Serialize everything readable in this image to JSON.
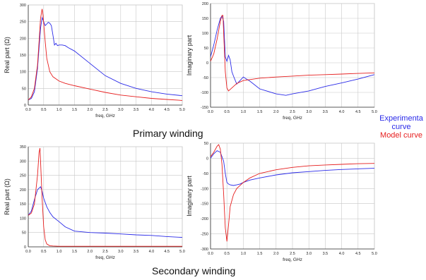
{
  "colors": {
    "experimental": "#2a2ae8",
    "model": "#e61e1e",
    "grid": "#c8c8c8",
    "axis": "#333333"
  },
  "captions": {
    "primary": "Primary winding",
    "secondary": "Secondary winding"
  },
  "legend": {
    "experimental_line1": "Experimenta",
    "experimental_line2": "curve",
    "model": "Model curve"
  },
  "chart_data": [
    {
      "id": "primary-real",
      "type": "line",
      "xlabel": "freq, GHz",
      "ylabel": "Real part (Ω)",
      "xlim": [
        0,
        5
      ],
      "ylim": [
        0,
        300
      ],
      "xticks": [
        0,
        0.5,
        1,
        1.5,
        2,
        2.5,
        3,
        3.5,
        4,
        4.5,
        5
      ],
      "xtick_labels": [
        "0.0",
        "0.5",
        "1.0",
        "1.5",
        "2.0",
        "2.5",
        "3.0",
        "3.5",
        "4.0",
        "4.5",
        "5.0"
      ],
      "yticks": [
        0,
        50,
        100,
        150,
        200,
        250,
        300
      ],
      "ytick_labels": [
        "0",
        "50",
        "100",
        "150",
        "200",
        "250",
        "300"
      ],
      "grid": true,
      "series": [
        {
          "color_key": "experimental",
          "x": [
            0,
            0.1,
            0.2,
            0.3,
            0.4,
            0.45,
            0.5,
            0.55,
            0.6,
            0.65,
            0.7,
            0.75,
            0.8,
            0.85,
            0.9,
            0.95,
            1.0,
            1.1,
            1.2,
            1.3,
            1.5,
            2.0,
            2.5,
            3.0,
            3.5,
            4.0,
            4.5,
            5.0
          ],
          "y": [
            15,
            20,
            40,
            110,
            230,
            262,
            250,
            238,
            243,
            248,
            245,
            238,
            210,
            180,
            185,
            178,
            180,
            180,
            178,
            172,
            162,
            125,
            88,
            65,
            50,
            40,
            33,
            28
          ]
        },
        {
          "color_key": "model",
          "x": [
            0,
            0.1,
            0.2,
            0.3,
            0.35,
            0.4,
            0.45,
            0.48,
            0.5,
            0.55,
            0.6,
            0.7,
            0.8,
            1.0,
            1.2,
            1.5,
            2.0,
            2.5,
            3.0,
            3.5,
            4.0,
            4.5,
            5.0
          ],
          "y": [
            15,
            25,
            50,
            120,
            190,
            260,
            288,
            270,
            245,
            190,
            140,
            100,
            85,
            72,
            65,
            58,
            48,
            38,
            30,
            25,
            20,
            17,
            14
          ]
        }
      ]
    },
    {
      "id": "primary-imag",
      "type": "line",
      "xlabel": "freq, GHz",
      "ylabel": "Imaginary part",
      "xlim": [
        0,
        5
      ],
      "ylim": [
        -150,
        200
      ],
      "xticks": [
        0,
        0.5,
        1,
        1.5,
        2,
        2.5,
        3,
        3.5,
        4,
        4.5,
        5
      ],
      "xtick_labels": [
        "0.0",
        "0.5",
        "1.0",
        "1.5",
        "2.0",
        "2.5",
        "3.0",
        "3.5",
        "4.0",
        "4.5",
        "5.0"
      ],
      "yticks": [
        -150,
        -100,
        -50,
        0,
        50,
        100,
        150,
        200
      ],
      "ytick_labels": [
        "-150",
        "-100",
        "-50",
        "0",
        "50",
        "100",
        "150",
        "200"
      ],
      "grid": true,
      "series": [
        {
          "color_key": "experimental",
          "x": [
            0,
            0.1,
            0.2,
            0.3,
            0.35,
            0.4,
            0.45,
            0.5,
            0.55,
            0.6,
            0.65,
            0.7,
            0.8,
            0.9,
            1.0,
            1.1,
            1.2,
            1.5,
            2.0,
            2.3,
            2.5,
            3.0,
            3.5,
            4.0,
            4.5,
            5.0
          ],
          "y": [
            20,
            60,
            110,
            150,
            158,
            140,
            20,
            5,
            25,
            10,
            -30,
            -45,
            -72,
            -60,
            -48,
            -55,
            -62,
            -88,
            -105,
            -110,
            -105,
            -95,
            -80,
            -68,
            -55,
            -40
          ]
        },
        {
          "color_key": "model",
          "x": [
            0,
            0.1,
            0.2,
            0.3,
            0.35,
            0.38,
            0.4,
            0.45,
            0.5,
            0.55,
            0.6,
            0.7,
            0.8,
            1.0,
            1.5,
            2.0,
            2.5,
            3.0,
            3.5,
            4.0,
            4.5,
            5.0
          ],
          "y": [
            5,
            30,
            80,
            140,
            160,
            160,
            100,
            -30,
            -85,
            -95,
            -90,
            -80,
            -70,
            -60,
            -52,
            -48,
            -45,
            -42,
            -40,
            -38,
            -36,
            -34
          ]
        }
      ]
    },
    {
      "id": "secondary-real",
      "type": "line",
      "xlabel": "freq, GHz",
      "ylabel": "Real part (Ω)",
      "xlim": [
        0,
        5
      ],
      "ylim": [
        0,
        350
      ],
      "xticks": [
        0,
        0.5,
        1,
        1.5,
        2,
        2.5,
        3,
        3.5,
        4,
        4.5,
        5
      ],
      "xtick_labels": [
        "0.0",
        "0.5",
        "1.0",
        "1.5",
        "2.0",
        "2.5",
        "3.0",
        "3.5",
        "4.0",
        "4.5",
        "5.0"
      ],
      "yticks": [
        0,
        50,
        100,
        150,
        200,
        250,
        300,
        350
      ],
      "ytick_labels": [
        "0",
        "50",
        "100",
        "150",
        "200",
        "250",
        "300",
        "350"
      ],
      "grid": true,
      "series": [
        {
          "color_key": "experimental",
          "x": [
            0,
            0.1,
            0.2,
            0.3,
            0.4,
            0.45,
            0.5,
            0.6,
            0.7,
            0.8,
            1.0,
            1.2,
            1.5,
            2.0,
            2.5,
            3.0,
            3.5,
            4.0,
            4.5,
            5.0
          ],
          "y": [
            110,
            125,
            165,
            200,
            210,
            195,
            170,
            140,
            120,
            105,
            88,
            70,
            55,
            50,
            48,
            45,
            42,
            40,
            36,
            33
          ]
        },
        {
          "color_key": "model",
          "x": [
            0,
            0.1,
            0.2,
            0.3,
            0.35,
            0.38,
            0.4,
            0.45,
            0.5,
            0.55,
            0.6,
            0.7,
            0.8,
            1.0,
            1.5,
            2.0,
            2.5,
            3.0,
            3.5,
            4.0,
            4.5,
            5.0
          ],
          "y": [
            110,
            118,
            150,
            250,
            330,
            345,
            300,
            170,
            70,
            25,
            10,
            4,
            3,
            2,
            2,
            2,
            2,
            2,
            2,
            2,
            2,
            2
          ]
        }
      ]
    },
    {
      "id": "secondary-imag",
      "type": "line",
      "xlabel": "freq, GHz",
      "ylabel": "Imaginary part",
      "xlim": [
        0,
        5
      ],
      "ylim": [
        -300,
        50
      ],
      "xticks": [
        0,
        0.5,
        1,
        1.5,
        2,
        2.5,
        3,
        3.5,
        4,
        4.5,
        5
      ],
      "xtick_labels": [
        "0.0",
        "0.5",
        "1.0",
        "1.5",
        "2.0",
        "2.5",
        "3.0",
        "3.5",
        "4.0",
        "4.5",
        "5.0"
      ],
      "yticks": [
        -300,
        -250,
        -200,
        -150,
        -100,
        -50,
        0,
        50
      ],
      "ytick_labels": [
        "-300",
        "-250",
        "-200",
        "-150",
        "-100",
        "-50",
        "0",
        "50"
      ],
      "grid": true,
      "series": [
        {
          "color_key": "experimental",
          "x": [
            0,
            0.1,
            0.2,
            0.3,
            0.4,
            0.45,
            0.5,
            0.55,
            0.6,
            0.7,
            0.8,
            0.9,
            1.0,
            1.2,
            1.5,
            2.0,
            2.5,
            3.0,
            3.5,
            4.0,
            4.5,
            5.0
          ],
          "y": [
            0,
            15,
            25,
            20,
            -10,
            -50,
            -80,
            -85,
            -88,
            -90,
            -88,
            -85,
            -80,
            -72,
            -65,
            -55,
            -48,
            -44,
            -40,
            -37,
            -35,
            -33
          ]
        },
        {
          "color_key": "model",
          "x": [
            0,
            0.1,
            0.2,
            0.25,
            0.3,
            0.35,
            0.4,
            0.45,
            0.5,
            0.55,
            0.6,
            0.7,
            0.8,
            1.0,
            1.2,
            1.5,
            2.0,
            2.5,
            3.0,
            3.5,
            4.0,
            4.5,
            5.0
          ],
          "y": [
            5,
            20,
            40,
            45,
            30,
            -20,
            -120,
            -230,
            -275,
            -220,
            -160,
            -120,
            -100,
            -80,
            -65,
            -50,
            -38,
            -30,
            -25,
            -22,
            -20,
            -18,
            -17
          ]
        }
      ]
    }
  ]
}
